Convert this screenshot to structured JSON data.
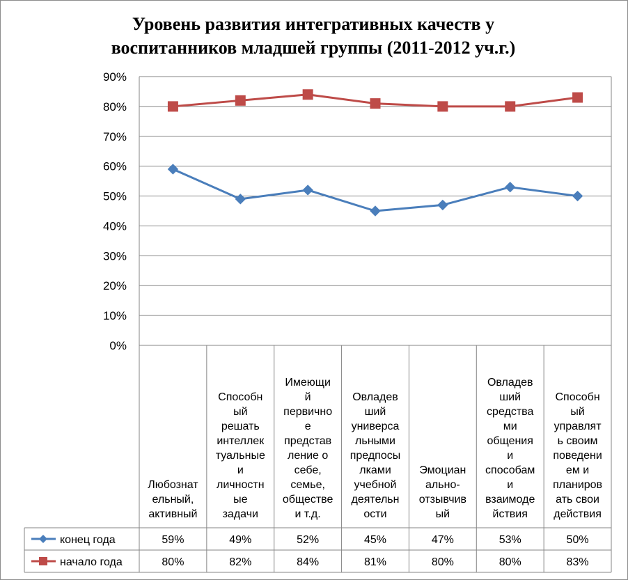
{
  "chart_data": {
    "type": "line",
    "title_lines": [
      "Уровень развития интегративных качеств у",
      "воспитанников младшей  группы (2011-2012 уч.г.)"
    ],
    "ylim": [
      0,
      90
    ],
    "y_ticks": [
      "0%",
      "10%",
      "20%",
      "30%",
      "40%",
      "50%",
      "60%",
      "70%",
      "80%",
      "90%"
    ],
    "grid": true,
    "legend": "data-table",
    "categories": [
      [
        "Любознат",
        "ельный,",
        "активный"
      ],
      [
        "Способн",
        "ый",
        "решать",
        "интеллек",
        "туальные",
        "и",
        "личностн",
        "ые",
        "задачи"
      ],
      [
        "Имеющи",
        "й",
        "первично",
        "е",
        "представ",
        "ление о",
        "себе,",
        "семье,",
        "обществе",
        "и т.д."
      ],
      [
        "Овладев",
        "ший",
        "универса",
        "льными",
        "предпосы",
        "лками",
        "учебной",
        "деятельн",
        "ости"
      ],
      [
        "Эмоциан",
        "ально-",
        "отзывчив",
        "ый"
      ],
      [
        "Овладев",
        "ший",
        "средства",
        "ми",
        "общения",
        "и",
        "способам",
        "и",
        "взаимоде",
        "йствия"
      ],
      [
        "Способн",
        "ый",
        "управлят",
        "ь своим",
        "поведени",
        "ем и",
        "планиров",
        "ать свои",
        "действия"
      ]
    ],
    "series": [
      {
        "name": "конец года",
        "color": "#4a7ebb",
        "marker": "diamond",
        "values": [
          59,
          49,
          52,
          45,
          47,
          53,
          50
        ],
        "labels": [
          "59%",
          "49%",
          "52%",
          "45%",
          "47%",
          "53%",
          "50%"
        ]
      },
      {
        "name": "начало года",
        "color": "#be4b48",
        "marker": "square",
        "values": [
          80,
          82,
          84,
          81,
          80,
          80,
          83
        ],
        "labels": [
          "80%",
          "82%",
          "84%",
          "81%",
          "80%",
          "80%",
          "83%"
        ]
      }
    ]
  }
}
